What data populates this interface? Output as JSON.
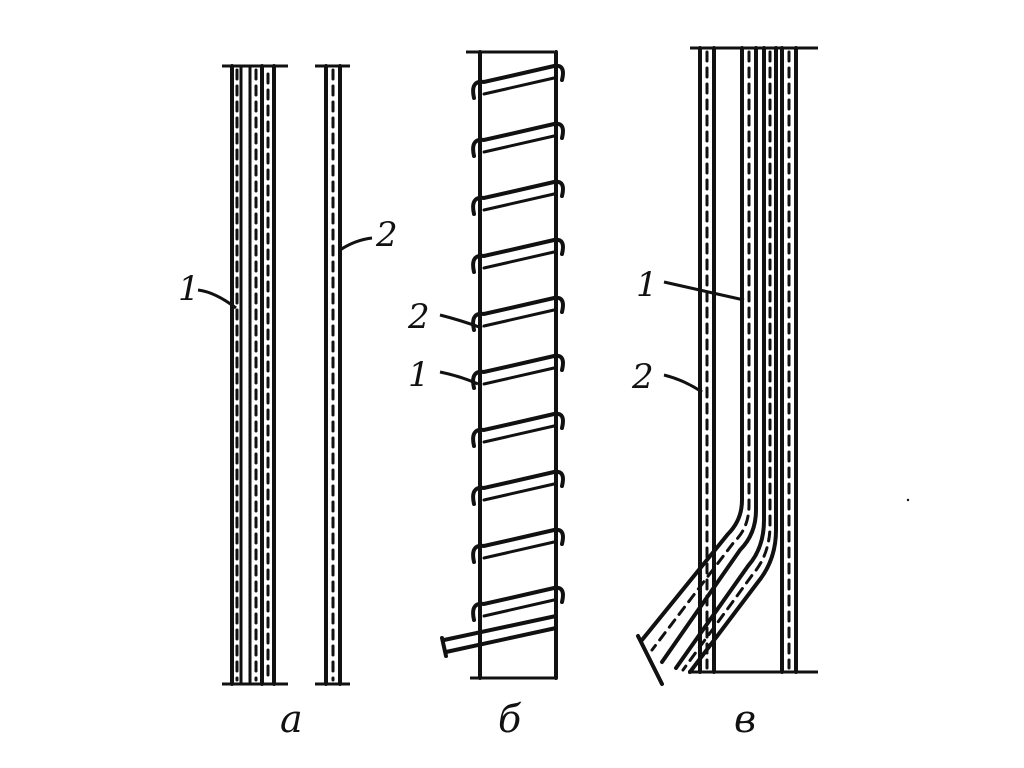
{
  "figure": {
    "panels": [
      {
        "id": "a",
        "caption": "а",
        "callouts": [
          "1",
          "2"
        ]
      },
      {
        "id": "b",
        "caption": "б",
        "callouts": [
          "2",
          "1"
        ]
      },
      {
        "id": "c",
        "caption": "в",
        "callouts": [
          "1",
          "2"
        ]
      }
    ]
  }
}
